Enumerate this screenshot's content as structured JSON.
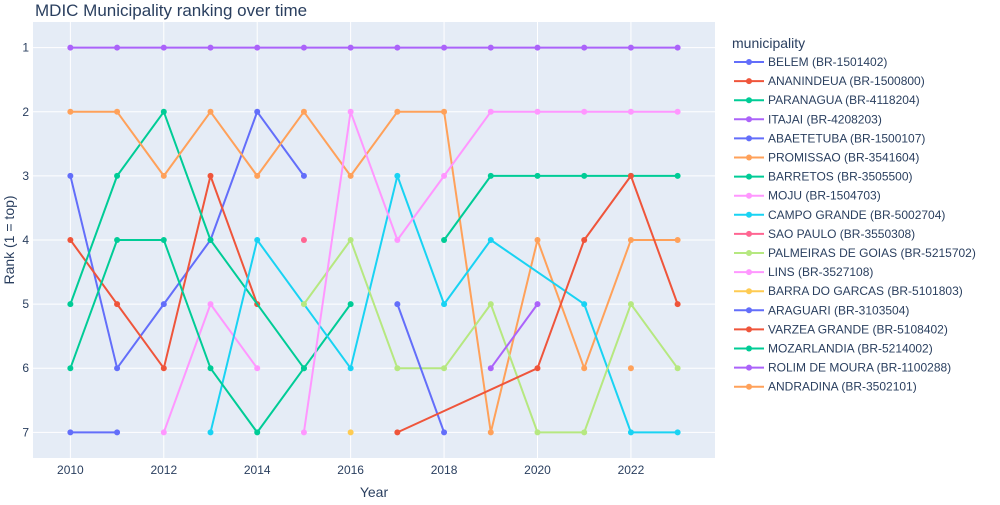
{
  "chart_data": {
    "type": "line",
    "title": "MDIC Municipality ranking over time",
    "xlabel": "Year",
    "ylabel": "Rank (1 = top)",
    "xlim": [
      2009.2,
      2023.8
    ],
    "ylim": [
      7.4,
      0.6
    ],
    "y_reversed": true,
    "x_ticks": [
      2010,
      2012,
      2014,
      2016,
      2018,
      2020,
      2022
    ],
    "y_ticks": [
      1,
      2,
      3,
      4,
      5,
      6,
      7
    ],
    "grid": true,
    "legend_title": "municipality",
    "legend_position": "right",
    "series": [
      {
        "name": "BELEM (BR-1501402)",
        "color": "#636efa",
        "points": [
          [
            2010,
            3
          ],
          [
            2011,
            6
          ],
          [
            2012,
            5
          ],
          [
            2013,
            4
          ],
          [
            2014,
            2
          ],
          [
            2015,
            3
          ]
        ]
      },
      {
        "name": "ANANINDEUA (BR-1500800)",
        "color": "#EF553B",
        "points": [
          [
            2010,
            4
          ],
          [
            2011,
            5
          ],
          [
            2012,
            6
          ],
          [
            2013,
            3
          ],
          [
            2014,
            5
          ]
        ]
      },
      {
        "name": "PARANAGUA (BR-4118204)",
        "color": "#00cc96",
        "points": [
          [
            2010,
            5
          ],
          [
            2011,
            3
          ],
          [
            2012,
            2
          ],
          [
            2013,
            4
          ],
          [
            2015,
            6
          ],
          [
            2016,
            5
          ]
        ]
      },
      {
        "name": "ITAJAI (BR-4208203)",
        "color": "#ab63fa",
        "points": [
          [
            2010,
            1
          ],
          [
            2011,
            1
          ],
          [
            2012,
            1
          ],
          [
            2013,
            1
          ],
          [
            2014,
            1
          ],
          [
            2015,
            1
          ],
          [
            2016,
            1
          ],
          [
            2017,
            1
          ],
          [
            2018,
            1
          ],
          [
            2019,
            1
          ],
          [
            2020,
            1
          ],
          [
            2021,
            1
          ],
          [
            2022,
            1
          ],
          [
            2023,
            1
          ]
        ]
      },
      {
        "name": "ABAETETUBA (BR-1500107)",
        "color": "#636efa",
        "points": [
          [
            2010,
            7
          ],
          [
            2011,
            7
          ]
        ]
      },
      {
        "name": "PROMISSAO (BR-3541604)",
        "color": "#FFA15A",
        "points": [
          [
            2010,
            2
          ],
          [
            2011,
            2
          ],
          [
            2012,
            3
          ],
          [
            2013,
            2
          ],
          [
            2014,
            3
          ],
          [
            2015,
            2
          ],
          [
            2016,
            3
          ],
          [
            2017,
            2
          ],
          [
            2018,
            2
          ],
          [
            2019,
            7
          ],
          [
            2020,
            4
          ],
          [
            2021,
            6
          ],
          [
            2022,
            4
          ],
          [
            2023,
            4
          ]
        ]
      },
      {
        "name": "BARRETOS (BR-3505500)",
        "color": "#00cc96",
        "points": [
          [
            2018,
            4
          ],
          [
            2019,
            3
          ],
          [
            2020,
            3
          ],
          [
            2021,
            3
          ],
          [
            2022,
            3
          ],
          [
            2023,
            3
          ]
        ]
      },
      {
        "name": "MOJU (BR-1504703)",
        "color": "#FF97FF",
        "points": [
          [
            2012,
            7
          ],
          [
            2013,
            5
          ],
          [
            2014,
            6
          ]
        ]
      },
      {
        "name": "CAMPO GRANDE (BR-5002704)",
        "color": "#19d3f3",
        "points": [
          [
            2013,
            7
          ],
          [
            2014,
            4
          ],
          [
            2016,
            6
          ],
          [
            2017,
            3
          ],
          [
            2018,
            5
          ],
          [
            2019,
            4
          ],
          [
            2021,
            5
          ],
          [
            2022,
            7
          ],
          [
            2023,
            7
          ]
        ]
      },
      {
        "name": "SAO PAULO (BR-3550308)",
        "color": "#FF6692",
        "points": [
          [
            2015,
            4
          ]
        ]
      },
      {
        "name": "PALMEIRAS DE GOIAS (BR-5215702)",
        "color": "#B6E880",
        "points": [
          [
            2015,
            5
          ],
          [
            2016,
            4
          ],
          [
            2017,
            6
          ],
          [
            2018,
            6
          ],
          [
            2019,
            5
          ],
          [
            2020,
            7
          ],
          [
            2021,
            7
          ],
          [
            2022,
            5
          ],
          [
            2023,
            6
          ]
        ]
      },
      {
        "name": "LINS (BR-3527108)",
        "color": "#FF97FF",
        "points": [
          [
            2015,
            7
          ],
          [
            2016,
            2
          ],
          [
            2017,
            4
          ],
          [
            2018,
            3
          ],
          [
            2019,
            2
          ],
          [
            2020,
            2
          ],
          [
            2021,
            2
          ],
          [
            2022,
            2
          ],
          [
            2023,
            2
          ]
        ]
      },
      {
        "name": "BARRA DO GARCAS (BR-5101803)",
        "color": "#FECB52",
        "points": [
          [
            2016,
            7
          ]
        ]
      },
      {
        "name": "ARAGUARI (BR-3103504)",
        "color": "#636efa",
        "points": [
          [
            2017,
            5
          ],
          [
            2018,
            7
          ]
        ]
      },
      {
        "name": "VARZEA GRANDE (BR-5108402)",
        "color": "#EF553B",
        "points": [
          [
            2017,
            7
          ],
          [
            2020,
            6
          ],
          [
            2021,
            4
          ],
          [
            2022,
            3
          ],
          [
            2023,
            5
          ]
        ]
      },
      {
        "name": "MOZARLANDIA (BR-5214002)",
        "color": "#00cc96",
        "points": [
          [
            2010,
            6
          ],
          [
            2011,
            4
          ],
          [
            2012,
            4
          ],
          [
            2013,
            6
          ],
          [
            2014,
            7
          ],
          [
            2015,
            6
          ]
        ]
      },
      {
        "name": "ROLIM DE MOURA (BR-1100288)",
        "color": "#ab63fa",
        "points": [
          [
            2019,
            6
          ],
          [
            2020,
            5
          ]
        ]
      },
      {
        "name": "ANDRADINA (BR-3502101)",
        "color": "#FFA15A",
        "points": [
          [
            2022,
            6
          ]
        ]
      }
    ]
  }
}
